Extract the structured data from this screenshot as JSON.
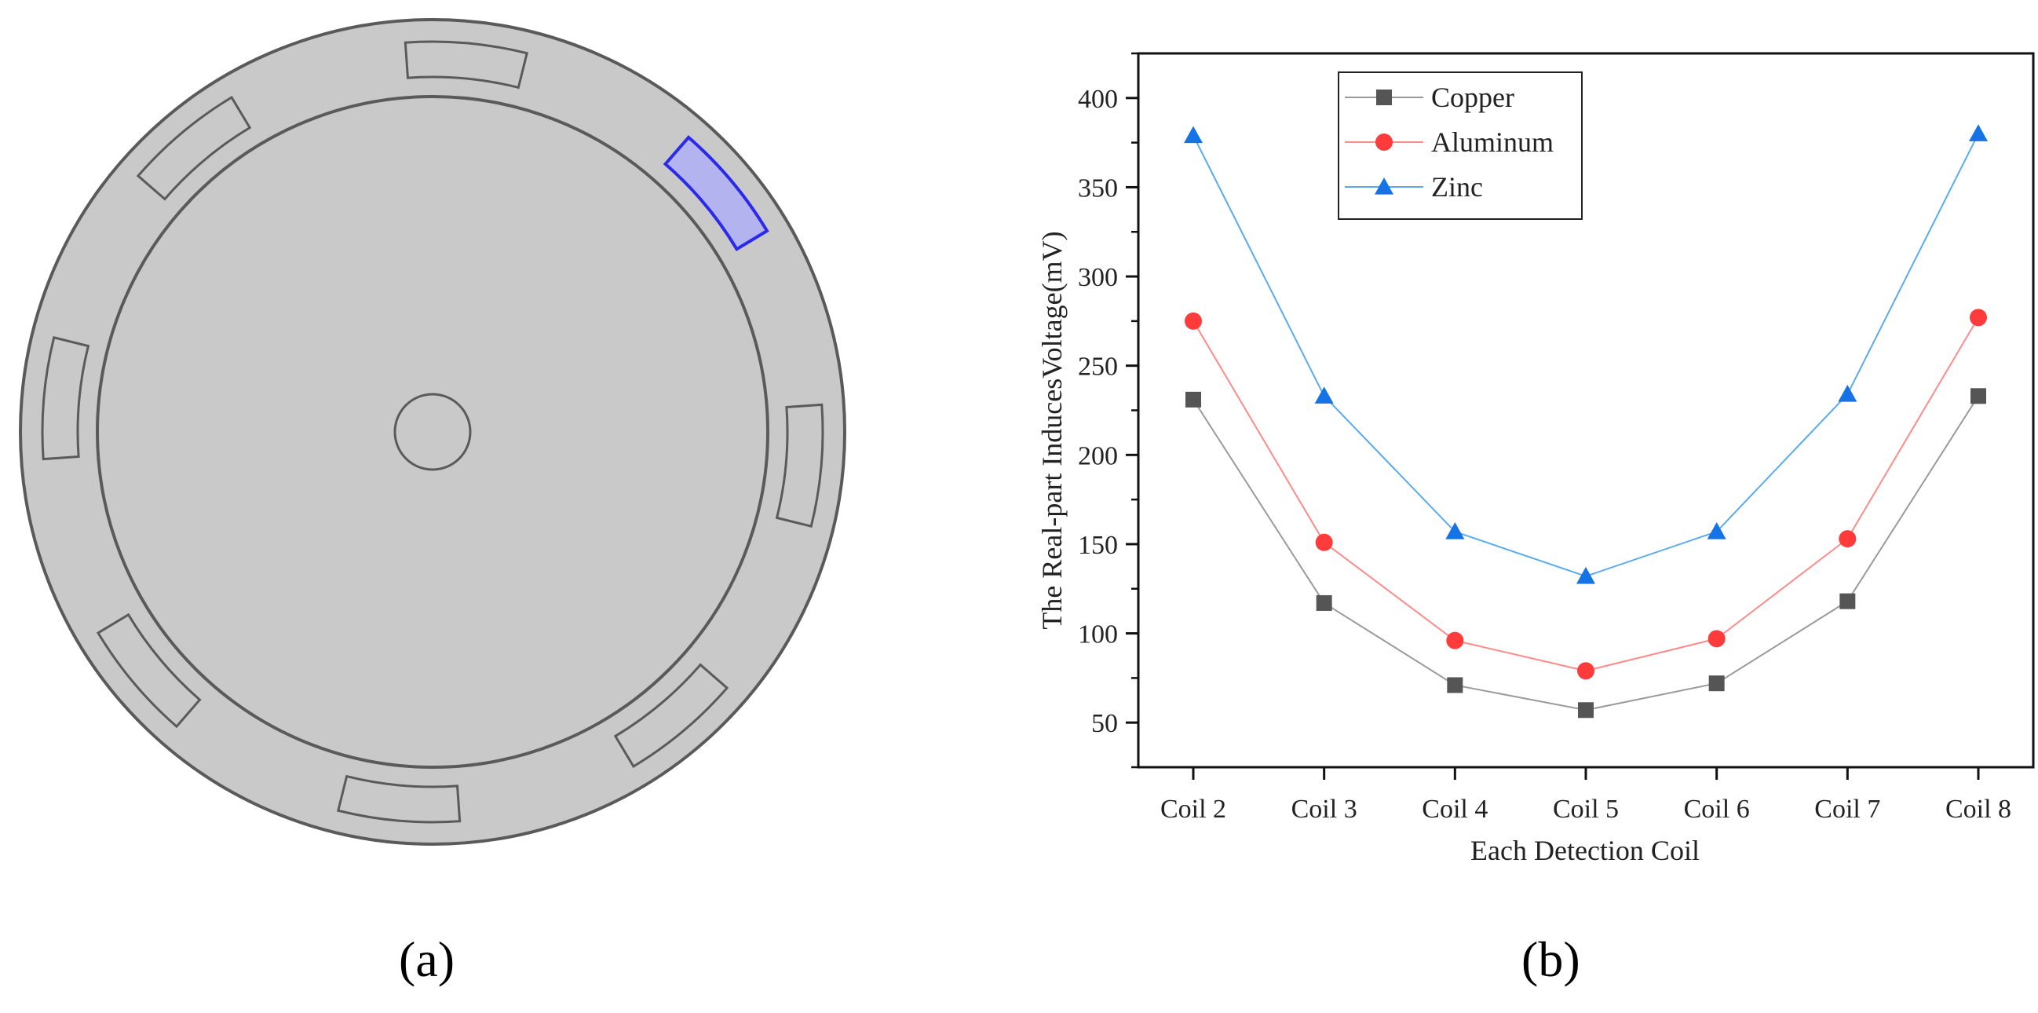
{
  "panels": {
    "a": {
      "label": "(a)"
    },
    "b": {
      "label": "(b)"
    }
  },
  "diagram": {
    "slot_count": 8,
    "highlighted_slot": 1,
    "colors": {
      "disk_fill": "#c9c9c9",
      "outline": "#5a5a5a",
      "highlight_fill": "#b3b3ef",
      "highlight_stroke": "#2a2ae8"
    }
  },
  "chart_data": {
    "type": "line",
    "title": "",
    "xlabel": "Each Detection Coil",
    "ylabel": "The Real-part InducesVoltage(mV)",
    "categories": [
      "Coil 2",
      "Coil 3",
      "Coil 4",
      "Coil 5",
      "Coil 6",
      "Coil 7",
      "Coil 8"
    ],
    "ylim": [
      25,
      425
    ],
    "yticks": [
      50,
      100,
      150,
      200,
      250,
      300,
      350,
      400
    ],
    "grid": false,
    "legend_position": "top-left",
    "series": [
      {
        "name": "Copper",
        "marker": "square",
        "color": "#555555",
        "line_color": "#9a9a9a",
        "values": [
          231,
          117,
          71,
          57,
          72,
          118,
          233
        ]
      },
      {
        "name": "Aluminum",
        "marker": "circle",
        "color": "#ff3b3b",
        "line_color": "#ff8a8a",
        "values": [
          275,
          151,
          96,
          79,
          97,
          153,
          277
        ]
      },
      {
        "name": "Zinc",
        "marker": "triangle",
        "color": "#1673e6",
        "line_color": "#5aaaf0",
        "values": [
          379,
          233,
          157,
          132,
          157,
          234,
          380
        ]
      }
    ]
  }
}
